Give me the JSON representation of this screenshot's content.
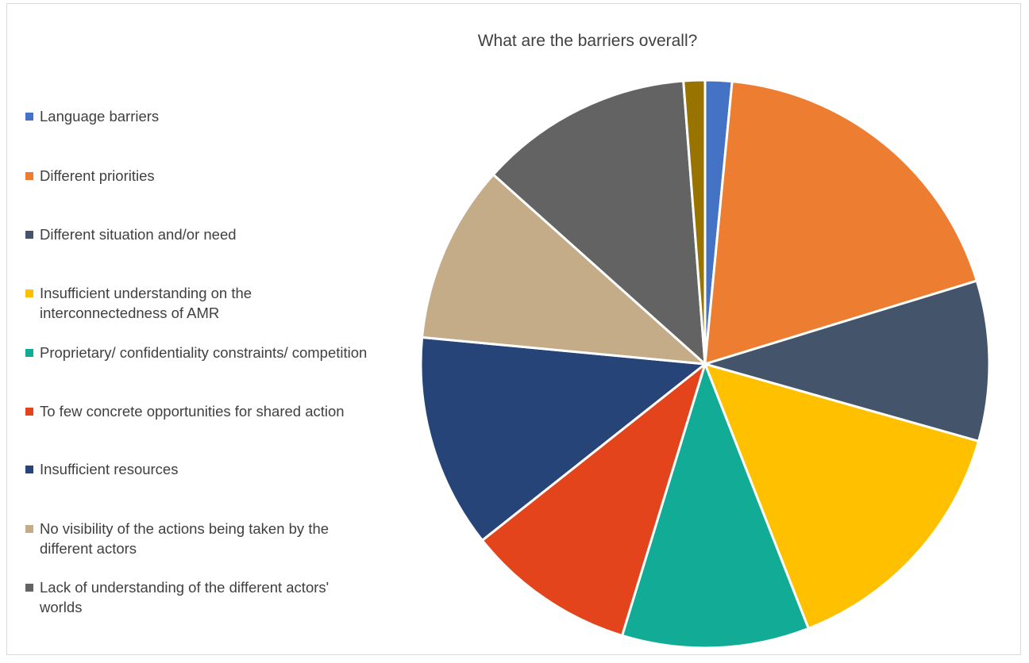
{
  "chart_data": {
    "type": "pie",
    "title": "What are the barriers overall?",
    "legend_position": "left",
    "slices": [
      {
        "label": "Language barriers",
        "value": 1.5,
        "color": "#4472C4"
      },
      {
        "label": "Different priorities",
        "value": 18.5,
        "color": "#ED7D31"
      },
      {
        "label": "Different situation and/or need",
        "value": 9.0,
        "color": "#44546A"
      },
      {
        "label": "Insufficient understanding on the interconnectedness of AMR",
        "value": 14.5,
        "color": "#FFC000"
      },
      {
        "label": "Proprietary/ confidentiality constraints/ competition",
        "value": 10.5,
        "color": "#12AB96"
      },
      {
        "label": "To few concrete opportunities for shared action",
        "value": 9.5,
        "color": "#E3441C"
      },
      {
        "label": "Insufficient resources",
        "value": 12.0,
        "color": "#264478"
      },
      {
        "label": "No visibility of the actions being taken by the different actors",
        "value": 10.0,
        "color": "#C4AC88"
      },
      {
        "label": "Lack of understanding of the different actors' worlds",
        "value": 12.0,
        "color": "#636363"
      },
      {
        "label": "",
        "value": 1.2,
        "color": "#997300"
      }
    ]
  }
}
